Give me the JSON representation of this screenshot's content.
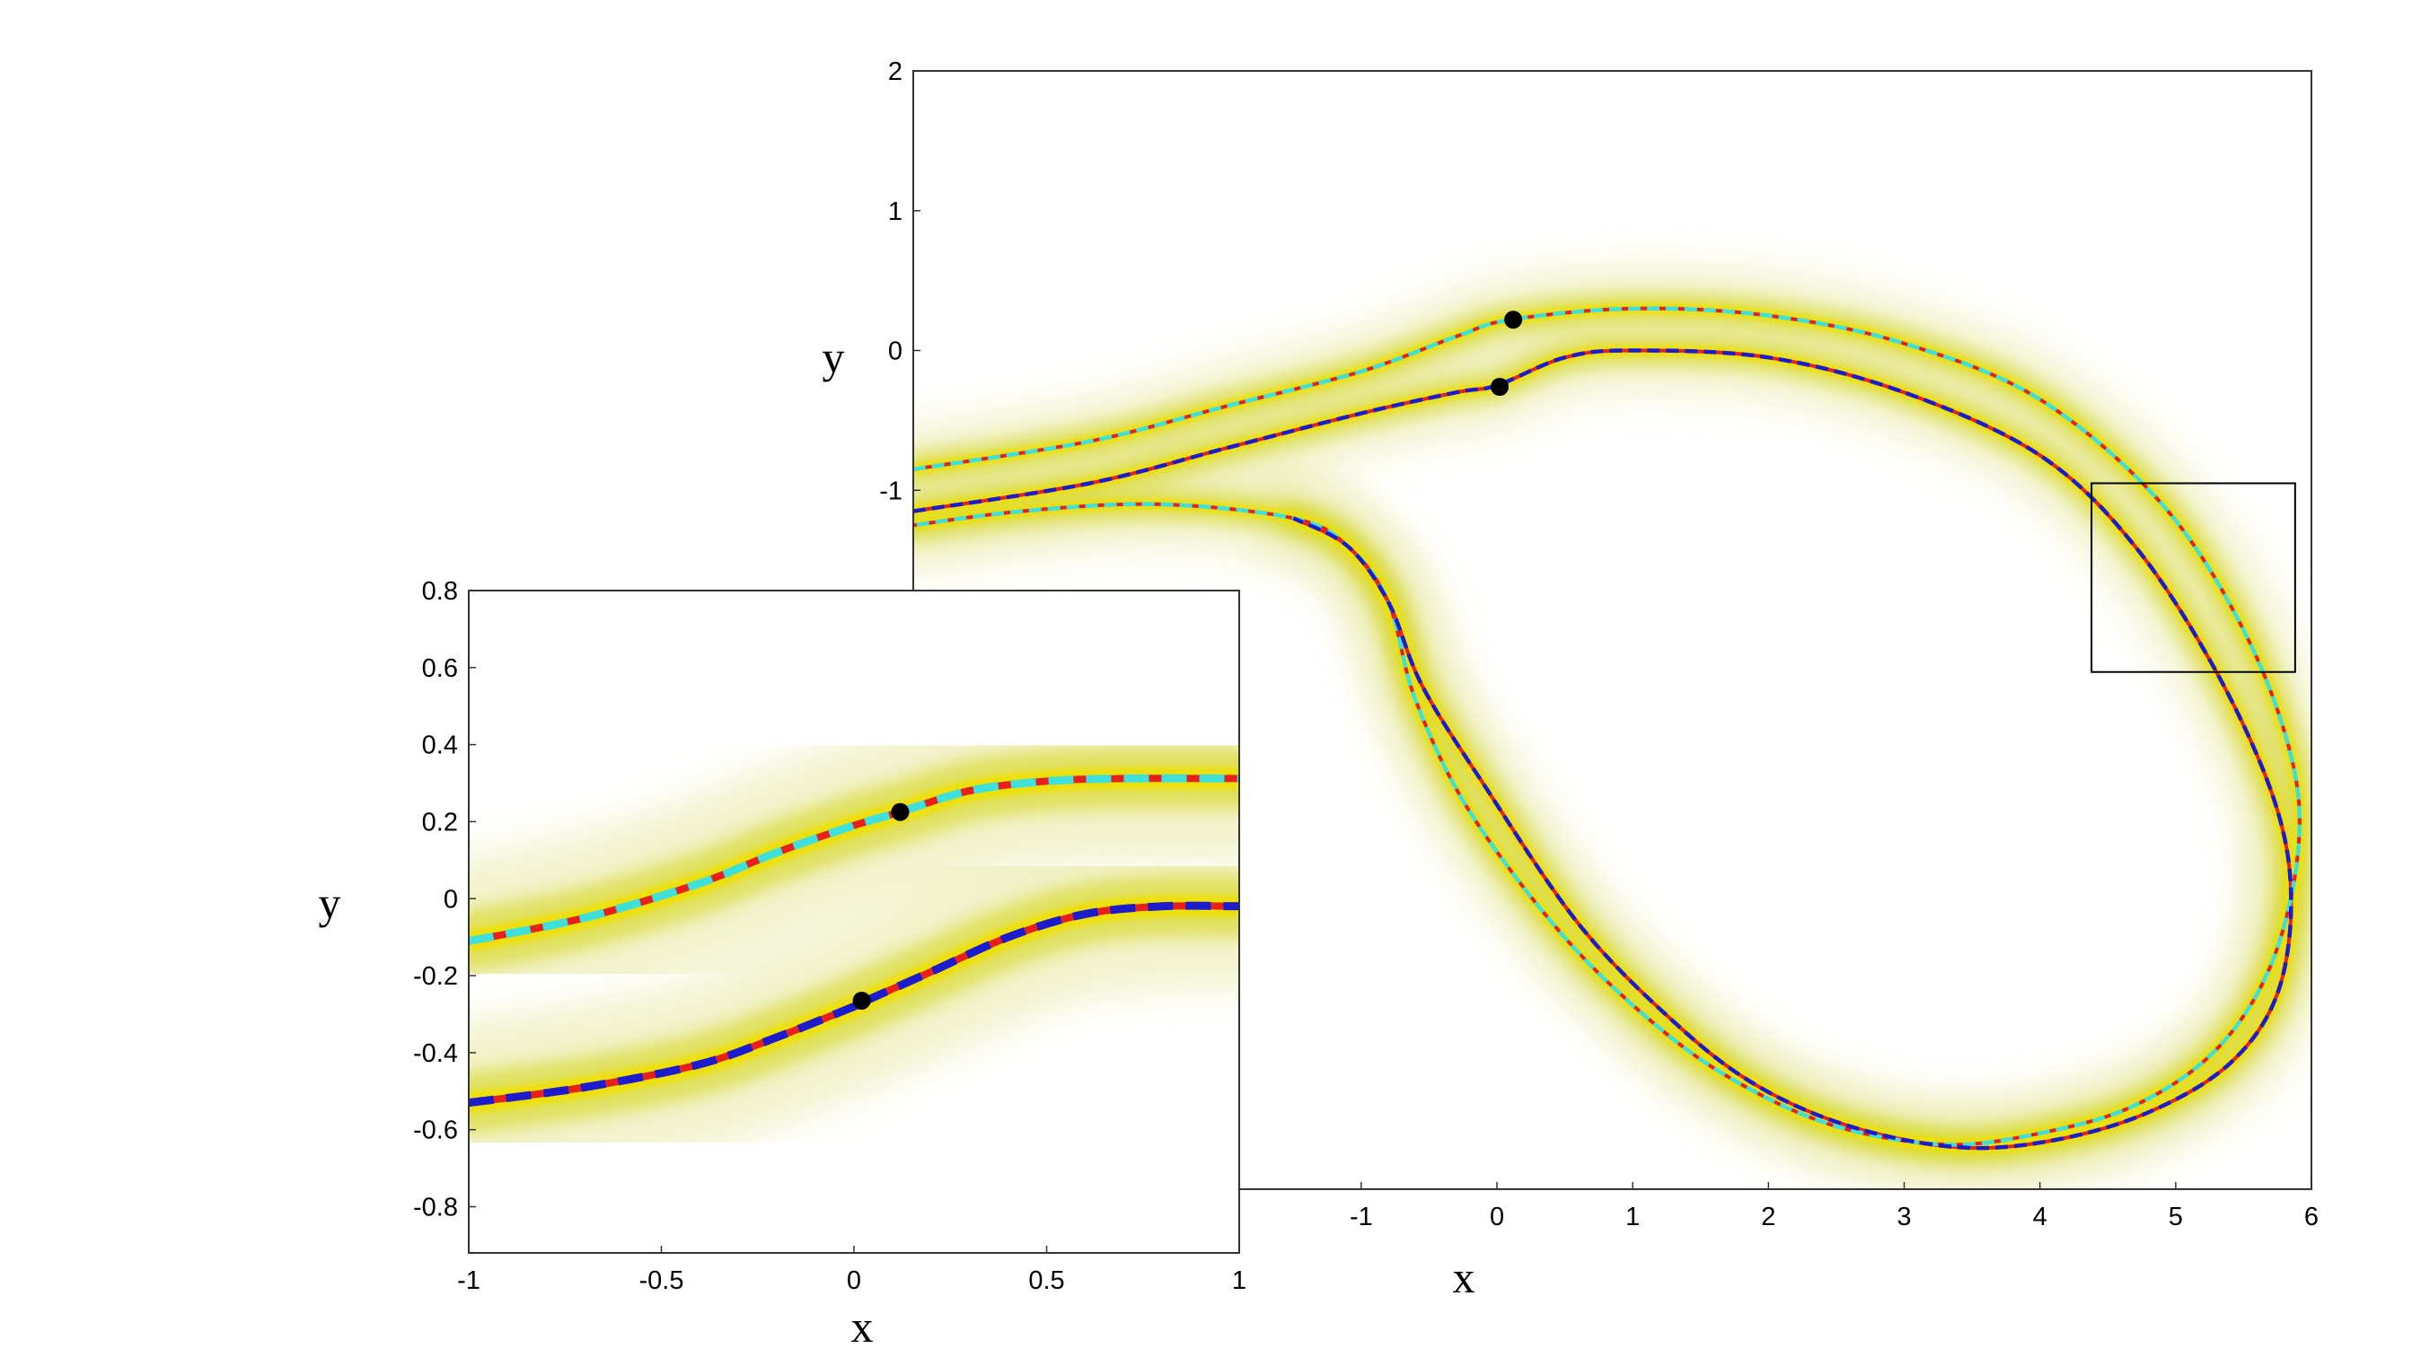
{
  "chart_data": [
    {
      "type": "line",
      "panel": "main",
      "xlabel": "x",
      "ylabel": "y",
      "xlim": [
        -4.3,
        6
      ],
      "ylim": [
        -6,
        2
      ],
      "xticks": [
        -1,
        0,
        1,
        2,
        3,
        4,
        5,
        6
      ],
      "yticks": [
        -1,
        0,
        1,
        2
      ],
      "colors": {
        "solid": "#e8201c",
        "dashed_cyan": "#3fe0dc",
        "dashed_blue": "#1c1ccc",
        "glow": "#d8d830"
      },
      "series": [
        {
          "style": "solid+cyan-dashed",
          "x": [
            -4.3,
            -3,
            -2,
            -1,
            -0.3,
            0.1,
            1,
            2,
            3,
            4,
            4.9,
            5.5,
            5.85,
            5.9,
            5.7,
            5.3,
            4.7,
            4,
            3.3,
            2.5,
            1.8,
            1.2,
            0.5,
            -0.2,
            -0.6,
            -0.8,
            -1.1,
            -1.5,
            -2.5,
            -3.5,
            -4.3
          ],
          "y": [
            -0.85,
            -0.65,
            -0.4,
            -0.15,
            0.1,
            0.22,
            0.3,
            0.25,
            0.05,
            -0.35,
            -1.1,
            -2,
            -2.9,
            -3.6,
            -4.4,
            -5,
            -5.4,
            -5.6,
            -5.68,
            -5.55,
            -5.25,
            -4.85,
            -4.2,
            -3.3,
            -2.5,
            -1.8,
            -1.4,
            -1.2,
            -1.1,
            -1.15,
            -1.25
          ]
        },
        {
          "style": "solid+blue-dashed",
          "x": [
            -4.3,
            -3,
            -2,
            -1,
            -0.3,
            0,
            0.5,
            1,
            2,
            3,
            4,
            4.7,
            5.3,
            5.72,
            5.85,
            5.75,
            5.4,
            4.8,
            4.1,
            3.4,
            2.6,
            1.9,
            1.3,
            0.6,
            -0.1,
            -0.55,
            -0.8,
            -1.1,
            -1.5
          ],
          "y": [
            -1.15,
            -0.95,
            -0.7,
            -0.45,
            -0.3,
            -0.25,
            -0.05,
            0.0,
            -0.05,
            -0.3,
            -0.75,
            -1.4,
            -2.3,
            -3.2,
            -3.9,
            -4.6,
            -5.1,
            -5.45,
            -5.65,
            -5.7,
            -5.55,
            -5.25,
            -4.8,
            -4.1,
            -3.1,
            -2.4,
            -1.8,
            -1.4,
            -1.2
          ]
        }
      ],
      "markers": [
        {
          "x": 0.12,
          "y": 0.22
        },
        {
          "x": 0.02,
          "y": -0.26
        }
      ],
      "inset_box": {
        "x": [
          4.38,
          5.88
        ],
        "y": [
          -2.3,
          -0.95
        ]
      }
    },
    {
      "type": "line",
      "panel": "inset",
      "xlabel": "x",
      "ylabel": "y",
      "xlim": [
        -1,
        1
      ],
      "ylim": [
        -0.92,
        0.8
      ],
      "xticks": [
        -1,
        -0.5,
        0,
        0.5,
        1
      ],
      "yticks": [
        0.8,
        0.6,
        0.4,
        0.2,
        0,
        -0.2,
        -0.4,
        -0.6,
        -0.8
      ],
      "series": [
        {
          "style": "solid+cyan-dashed",
          "x": [
            -1,
            -0.7,
            -0.4,
            -0.2,
            0,
            0.12,
            0.3,
            0.5,
            0.7,
            1
          ],
          "y": [
            -0.11,
            -0.05,
            0.04,
            0.12,
            0.19,
            0.225,
            0.28,
            0.305,
            0.312,
            0.312
          ]
        },
        {
          "style": "solid+blue-dashed",
          "x": [
            -1,
            -0.7,
            -0.4,
            -0.2,
            0,
            0.02,
            0.2,
            0.4,
            0.6,
            0.8,
            1
          ],
          "y": [
            -0.53,
            -0.49,
            -0.43,
            -0.36,
            -0.28,
            -0.27,
            -0.19,
            -0.1,
            -0.04,
            -0.02,
            -0.02
          ]
        }
      ],
      "markers": [
        {
          "x": 0.12,
          "y": 0.225
        },
        {
          "x": 0.02,
          "y": -0.265
        }
      ]
    }
  ]
}
